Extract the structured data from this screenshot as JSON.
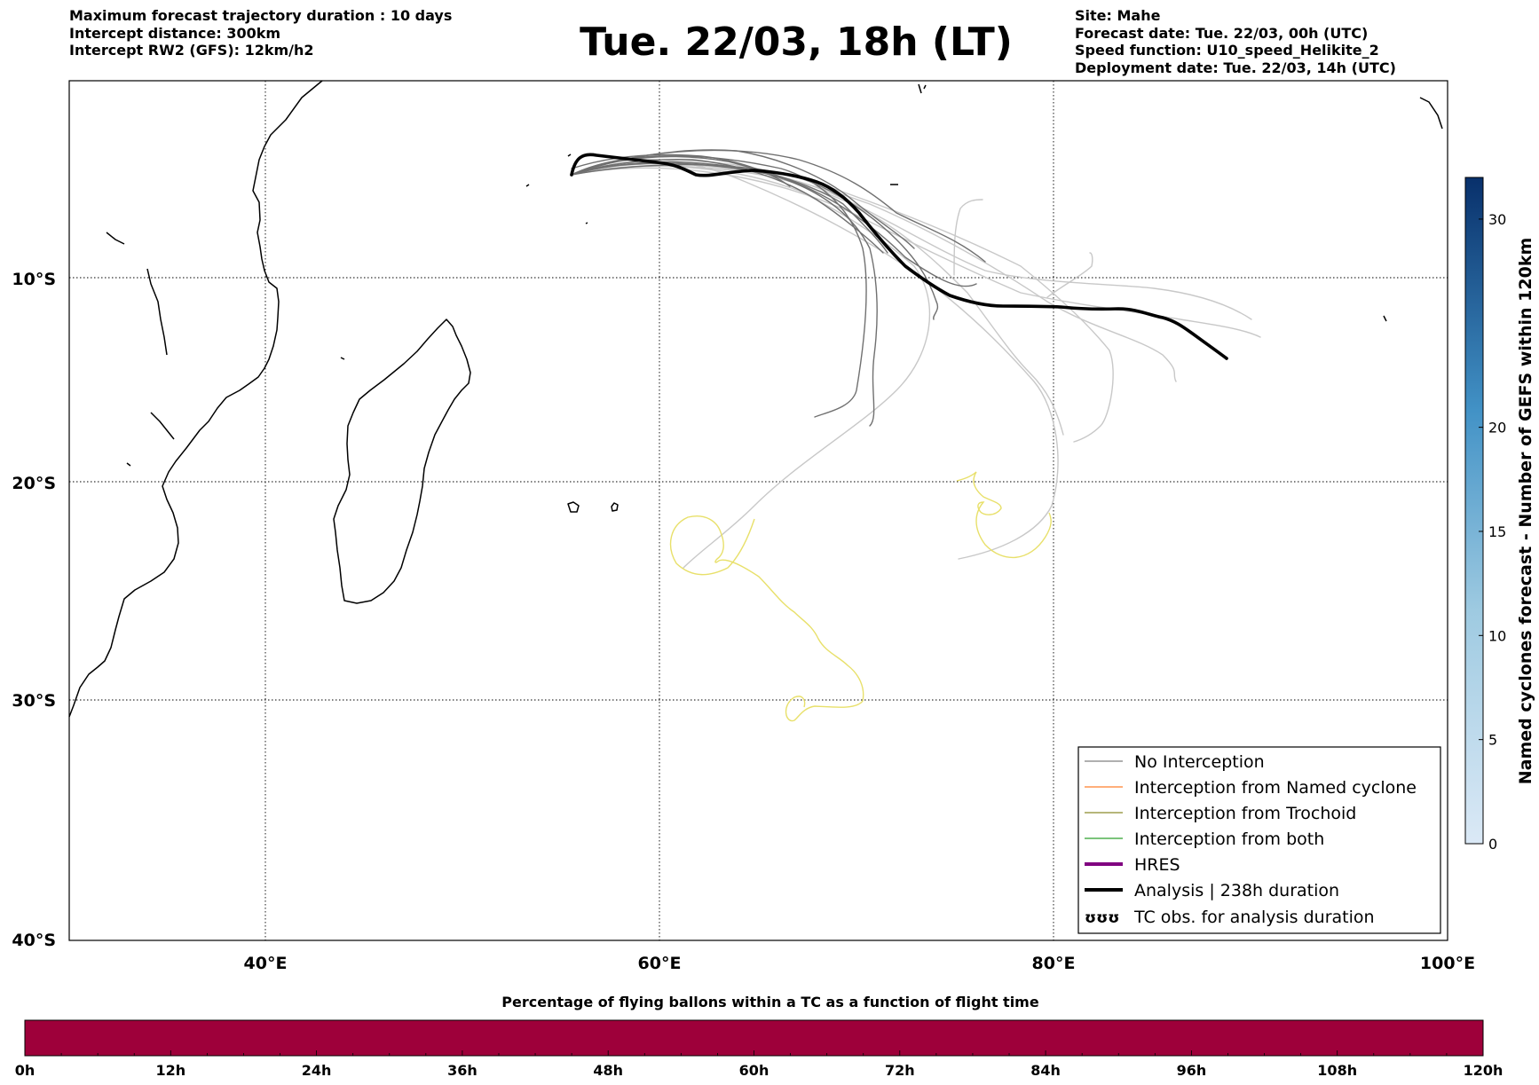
{
  "header": {
    "left_lines": [
      "Maximum forecast trajectory duration : 10 days",
      "Intercept distance: 300km",
      "Intercept RW2 (GFS):  12km/h2"
    ],
    "title": "Tue. 22/03, 18h (LT)",
    "right_lines": [
      "Site: Mahe",
      "Forecast date: Tue. 22/03, 00h (UTC)",
      "Speed function: U10_speed_Helikite_2",
      "Deployment date: Tue. 22/03, 14h (UTC)"
    ]
  },
  "map": {
    "lat_labels": [
      "10°S",
      "20°S",
      "30°S",
      "40°S"
    ],
    "lon_labels": [
      "40°E",
      "60°E",
      "80°E",
      "100°E"
    ],
    "colors": {
      "ocean": "#ffffff",
      "coast": "#000000",
      "grid": "#000000"
    }
  },
  "legend": {
    "items": [
      {
        "label": "No Interception",
        "color": "#808080",
        "style": "thin"
      },
      {
        "label": "Interception from Named cyclone",
        "color": "#ff7f2a",
        "style": "thin"
      },
      {
        "label": "Interception from Trochoid",
        "color": "#8a8a2a",
        "style": "thin"
      },
      {
        "label": "Interception from both",
        "color": "#2ca02c",
        "style": "thin"
      },
      {
        "label": "HRES",
        "color": "#800080",
        "style": "thick"
      },
      {
        "label": "Analysis | 238h duration",
        "color": "#000000",
        "style": "thick"
      },
      {
        "label": "TC obs. for analysis duration",
        "color": "#000000",
        "style": "symbol",
        "symbol": "ʊʊʊ"
      }
    ]
  },
  "colorbar_right": {
    "label": "Named cyclones forecast - Number of GEFS within 120km",
    "ticks": [
      "0",
      "5",
      "10",
      "15",
      "20",
      "30"
    ],
    "tick_values": [
      0,
      5,
      10,
      15,
      20,
      30
    ],
    "max": 32,
    "color_low": "#dbe9f6",
    "color_high": "#08306b"
  },
  "colorbar_bottom": {
    "title": "Percentage of flying ballons within a TC as a function of flight time",
    "ticks": [
      "0h",
      "12h",
      "24h",
      "36h",
      "48h",
      "60h",
      "72h",
      "84h",
      "96h",
      "108h",
      "120h"
    ],
    "fill_color": "#9e003a"
  }
}
